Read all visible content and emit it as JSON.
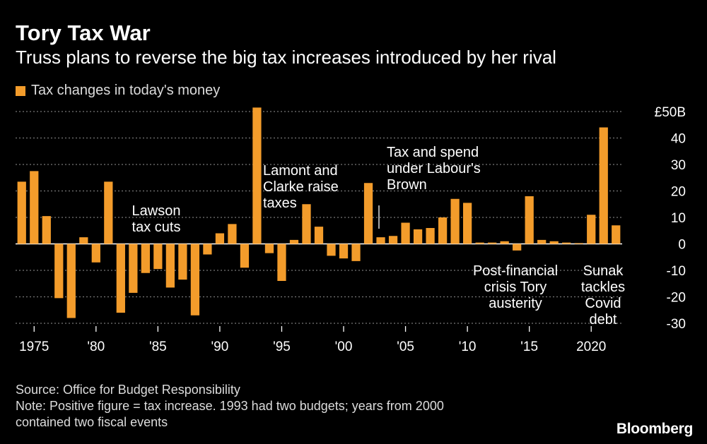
{
  "header": {
    "title": "Tory Tax War",
    "subtitle": "Truss plans to reverse the big tax increases introduced by her rival"
  },
  "legend": {
    "label": "Tax changes in today's money"
  },
  "footer": {
    "source": "Source: Office for Budget Responsibility",
    "note_line1": "Note: Positive figure = tax increase. 1993 had two budgets; years from 2000",
    "note_line2": "contained two fiscal events"
  },
  "brand": "Bloomberg",
  "colors": {
    "bar": "#f39c2b",
    "background": "#000000",
    "grid": "#777777",
    "text": "#ffffff"
  },
  "chart_data": {
    "type": "bar",
    "title": "Tory Tax War",
    "subtitle": "Truss plans to reverse the big tax increases introduced by her rival",
    "unit_label": "£50B",
    "ylim": [
      -30,
      50
    ],
    "y_ticks": [
      50,
      40,
      30,
      20,
      10,
      0,
      -10,
      -20,
      -30
    ],
    "y_tick_labels": [
      "£50B",
      "40",
      "30",
      "20",
      "10",
      "0",
      "-10",
      "-20",
      "-30"
    ],
    "x_ticks": [
      1975,
      1980,
      1985,
      1990,
      1995,
      2000,
      2005,
      2010,
      2015,
      2020
    ],
    "x_tick_labels": [
      "1975",
      "'80",
      "'85",
      "'90",
      "'95",
      "'00",
      "'05",
      "'10",
      "'15",
      "2020"
    ],
    "grid": true,
    "legend_position": "top-left",
    "series": [
      {
        "name": "Tax changes in today's money",
        "x": [
          1974,
          1975,
          1976,
          1977,
          1978,
          1979,
          1980,
          1981,
          1982,
          1983,
          1984,
          1985,
          1986,
          1987,
          1988,
          1989,
          1990,
          1991,
          1992,
          1993,
          1994,
          1995,
          1996,
          1997,
          1998,
          1999,
          2000,
          2001,
          2002,
          2003,
          2004,
          2005,
          2006,
          2007,
          2008,
          2009,
          2010,
          2011,
          2012,
          2013,
          2014,
          2015,
          2016,
          2017,
          2018,
          2019,
          2020,
          2021,
          2022
        ],
        "values": [
          23.5,
          27.5,
          10.5,
          -20.5,
          -28,
          2.5,
          -7,
          23.5,
          -26,
          -18.5,
          -11,
          -9.5,
          -16.5,
          -13.5,
          -27,
          -4,
          4,
          7.5,
          -9,
          51.5,
          -3.5,
          -14,
          1.5,
          15,
          6.5,
          -4.5,
          -5.5,
          -6.5,
          23,
          2.5,
          3,
          8,
          5.5,
          6,
          10,
          17,
          15.5,
          0.5,
          0.5,
          1,
          -2.5,
          18,
          1.5,
          1,
          0.5,
          0.3,
          11,
          44,
          7
        ]
      }
    ],
    "annotations": [
      {
        "text": "Lawson tax cuts",
        "lines": [
          "Lawson",
          "tax cuts"
        ]
      },
      {
        "text": "Lamont and Clarke raise taxes",
        "lines": [
          "Lamont and",
          "Clarke raise",
          "taxes"
        ]
      },
      {
        "text": "Tax and spend under Labour's Brown",
        "lines": [
          "Tax and spend",
          "under Labour's",
          "Brown"
        ]
      },
      {
        "text": "Post-financial crisis Tory austerity",
        "lines": [
          "Post-financial",
          "crisis Tory",
          "austerity"
        ]
      },
      {
        "text": "Sunak tackles Covid debt",
        "lines": [
          "Sunak",
          "tackles",
          "Covid",
          "debt"
        ]
      }
    ]
  }
}
